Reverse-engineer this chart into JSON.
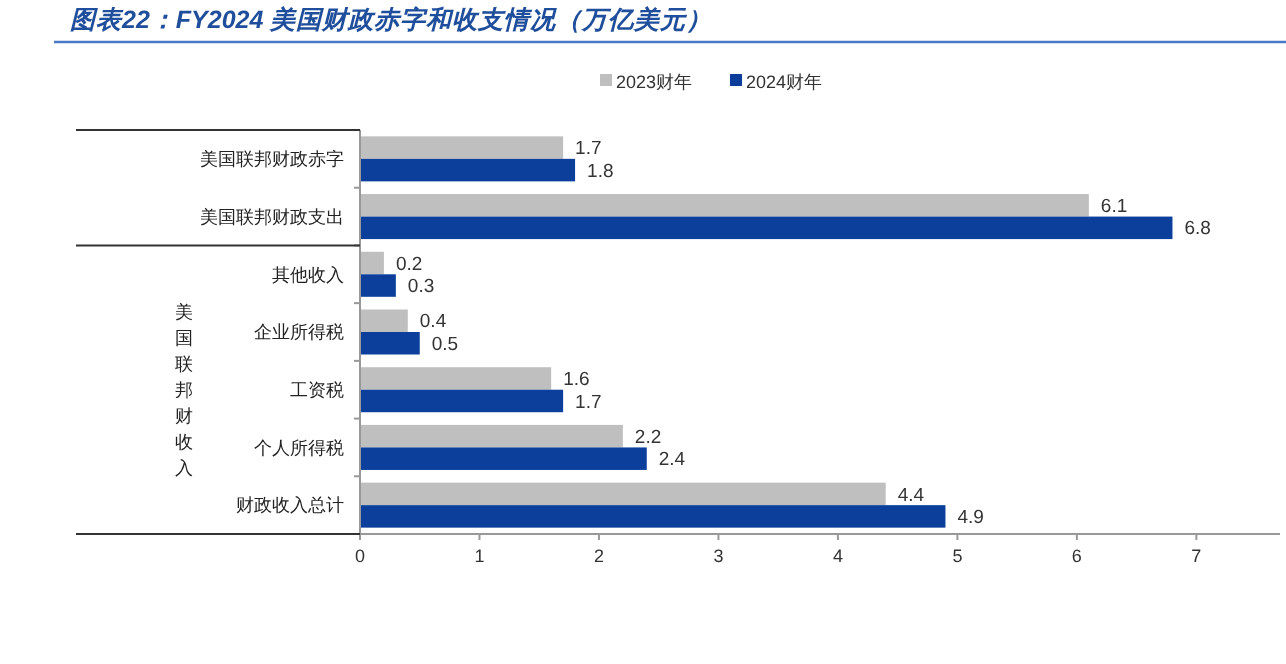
{
  "chart_data": {
    "type": "bar",
    "orientation": "horizontal",
    "title": "图表22：FY2024 美国财政赤字和收支情况（万亿美元）",
    "categories": [
      "美国联邦财政赤字",
      "美国联邦财政支出",
      "其他收入",
      "企业所得税",
      "工资税",
      "个人所得税",
      "财政收入总计"
    ],
    "series": [
      {
        "name": "2023财年",
        "color": "#bfbfbf",
        "values": [
          1.7,
          6.1,
          0.2,
          0.4,
          1.6,
          2.2,
          4.4
        ]
      },
      {
        "name": "2024财年",
        "color": "#0c3f9c",
        "values": [
          1.8,
          6.8,
          0.3,
          0.5,
          1.7,
          2.4,
          4.9
        ]
      }
    ],
    "xlim": [
      0,
      7.7
    ],
    "xticks": [
      0,
      1,
      2,
      3,
      4,
      5,
      6,
      7
    ],
    "data_labels": true,
    "legend": "top",
    "grid": false,
    "annotations": [
      "美国联邦财收入"
    ]
  }
}
